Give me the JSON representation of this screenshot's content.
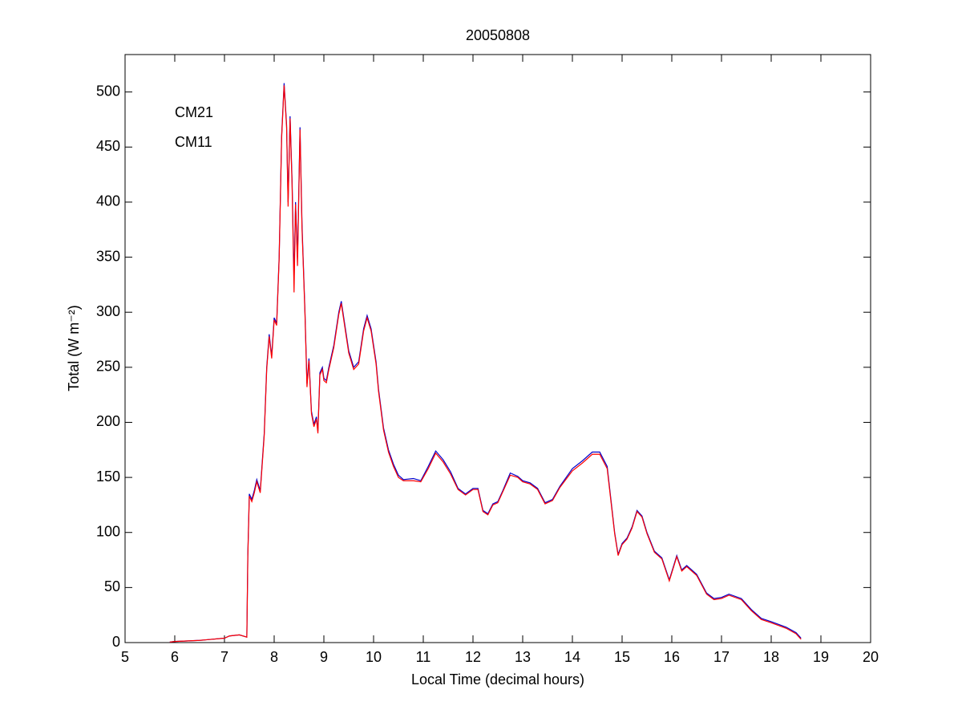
{
  "chart_data": {
    "type": "line",
    "title": "20050808",
    "xlabel": "Local Time (decimal hours)",
    "ylabel": "Total (W m⁻²)",
    "x": [
      5.9,
      6.0,
      6.5,
      7.0,
      7.1,
      7.3,
      7.45,
      7.47,
      7.5,
      7.55,
      7.6,
      7.65,
      7.72,
      7.8,
      7.85,
      7.9,
      7.95,
      8.0,
      8.05,
      8.1,
      8.15,
      8.2,
      8.25,
      8.28,
      8.32,
      8.36,
      8.4,
      8.43,
      8.47,
      8.52,
      8.56,
      8.62,
      8.66,
      8.7,
      8.75,
      8.8,
      8.85,
      8.88,
      8.92,
      8.97,
      9.0,
      9.05,
      9.1,
      9.2,
      9.3,
      9.35,
      9.4,
      9.5,
      9.6,
      9.7,
      9.8,
      9.87,
      9.95,
      10.05,
      10.1,
      10.2,
      10.3,
      10.4,
      10.5,
      10.6,
      10.8,
      10.95,
      11.1,
      11.25,
      11.4,
      11.55,
      11.7,
      11.85,
      12.0,
      12.1,
      12.2,
      12.3,
      12.4,
      12.5,
      12.6,
      12.75,
      12.9,
      13.0,
      13.15,
      13.3,
      13.45,
      13.6,
      13.75,
      14.0,
      14.2,
      14.4,
      14.55,
      14.7,
      14.85,
      14.92,
      15.0,
      15.1,
      15.2,
      15.3,
      15.4,
      15.5,
      15.65,
      15.8,
      15.95,
      16.1,
      16.2,
      16.3,
      16.5,
      16.7,
      16.85,
      17.0,
      17.15,
      17.4,
      17.6,
      17.8,
      18.0,
      18.3,
      18.5,
      18.6
    ],
    "series": [
      {
        "name": "CM21",
        "color": "#0000cc",
        "values": [
          0.5,
          1,
          2,
          4,
          6,
          7,
          5,
          80,
          135,
          130,
          138,
          148,
          138,
          190,
          250,
          280,
          260,
          295,
          290,
          350,
          460,
          508,
          470,
          400,
          478,
          420,
          330,
          400,
          350,
          468,
          380,
          300,
          235,
          258,
          210,
          198,
          205,
          192,
          245,
          250,
          240,
          238,
          250,
          270,
          300,
          310,
          295,
          265,
          250,
          255,
          285,
          297,
          285,
          255,
          230,
          195,
          175,
          162,
          152,
          148,
          149,
          147,
          160,
          174,
          166,
          155,
          140,
          135,
          140,
          140,
          120,
          117,
          126,
          128,
          138,
          154,
          151,
          147,
          145,
          140,
          127,
          130,
          142,
          158,
          165,
          173,
          173,
          160,
          100,
          80,
          90,
          95,
          105,
          120,
          115,
          100,
          83,
          77,
          57,
          79,
          66,
          70,
          62,
          45,
          40,
          41,
          44,
          40,
          30,
          22,
          19,
          14,
          9,
          4
        ]
      },
      {
        "name": "CM11",
        "color": "#ff0000",
        "values": [
          0.5,
          1,
          2,
          4,
          6,
          7,
          5,
          78,
          133,
          128,
          136,
          146,
          136,
          188,
          248,
          278,
          258,
          293,
          288,
          348,
          458,
          506,
          468,
          396,
          476,
          416,
          318,
          398,
          342,
          466,
          376,
          298,
          232,
          256,
          208,
          196,
          203,
          190,
          243,
          248,
          238,
          236,
          248,
          268,
          298,
          308,
          293,
          263,
          248,
          253,
          283,
          295,
          283,
          253,
          228,
          193,
          173,
          160,
          150,
          147,
          147,
          146,
          158,
          172,
          164,
          153,
          139,
          134,
          139,
          139,
          119,
          116,
          125,
          127,
          137,
          152,
          150,
          146,
          144,
          139,
          126,
          129,
          141,
          156,
          163,
          171,
          171,
          158,
          99,
          79,
          89,
          94,
          104,
          119,
          114,
          99,
          82,
          76,
          56,
          78,
          65,
          69,
          61,
          44,
          39,
          40,
          43,
          39,
          29,
          21,
          18,
          13,
          8,
          3
        ]
      }
    ],
    "xlim": [
      5,
      20
    ],
    "ylim": [
      0,
      534
    ],
    "xticks": [
      5,
      6,
      7,
      8,
      9,
      10,
      11,
      12,
      13,
      14,
      15,
      16,
      17,
      18,
      19,
      20
    ],
    "yticks": [
      0,
      50,
      100,
      150,
      200,
      250,
      300,
      350,
      400,
      450,
      500
    ],
    "legend": "upper-left",
    "grid": false
  }
}
